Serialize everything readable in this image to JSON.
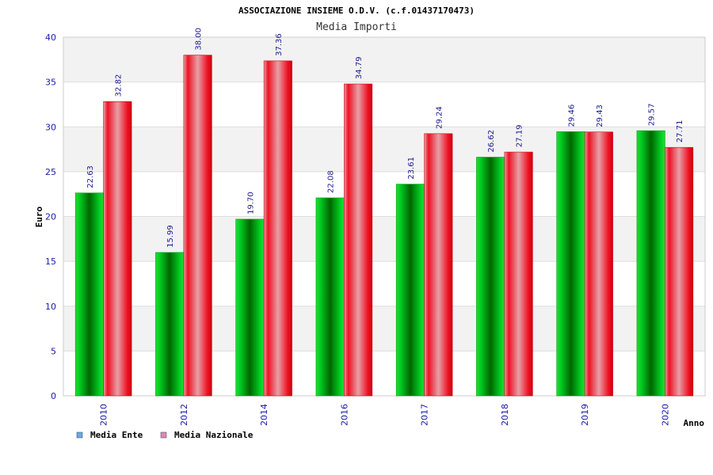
{
  "chart_data": {
    "type": "bar",
    "title": "ASSOCIAZIONE INSIEME O.D.V. (c.f.01437170473)",
    "subtitle": "Media Importi",
    "xlabel": "Anno",
    "ylabel": "Euro",
    "categories": [
      "2010",
      "2012",
      "2014",
      "2016",
      "2017",
      "2018",
      "2019",
      "2020"
    ],
    "series": [
      {
        "name": "Media Ente",
        "values": [
          22.63,
          15.99,
          19.7,
          22.08,
          23.61,
          26.62,
          29.46,
          29.57
        ],
        "labels": [
          "22.63",
          "15.99",
          "19.70",
          "22.08",
          "23.61",
          "26.62",
          "29.46",
          "29.57"
        ]
      },
      {
        "name": "Media Nazionale",
        "values": [
          32.82,
          38.0,
          37.36,
          34.79,
          29.24,
          27.19,
          29.43,
          27.71
        ],
        "labels": [
          "32.82",
          "38.00",
          "37.36",
          "34.79",
          "29.24",
          "27.19",
          "29.43",
          "27.71"
        ]
      }
    ],
    "ylim": [
      0,
      40
    ],
    "yticks": [
      "0",
      "5",
      "10",
      "15",
      "20",
      "25",
      "30",
      "35",
      "40"
    ],
    "grid": true,
    "legend_position": "bottom-left",
    "colors": {
      "series": [
        "#00cc22",
        "#ee1122"
      ],
      "series_dark": [
        "#006600",
        "#cc0011"
      ],
      "series_light": [
        "#22dd33",
        "#e6a0a8"
      ],
      "legend": [
        "#66aaee",
        "#dd88bb"
      ],
      "band": "#f2f2f2",
      "tick": "#1a1aa6"
    }
  }
}
